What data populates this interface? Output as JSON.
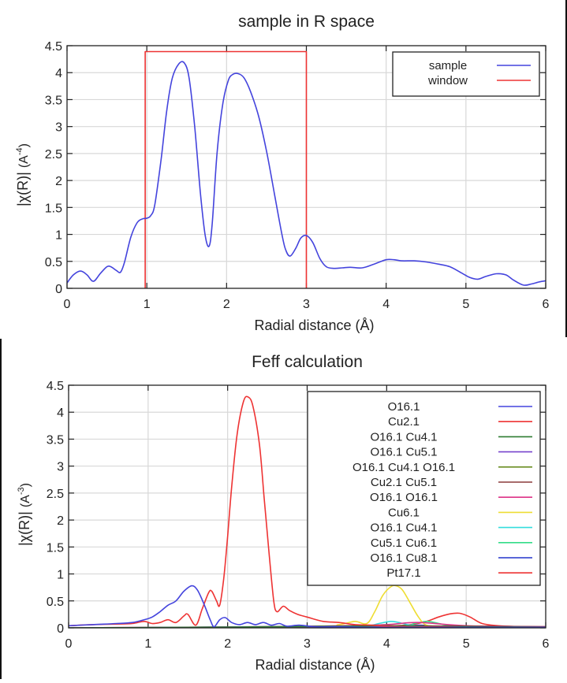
{
  "chart_data": [
    {
      "type": "line",
      "title": "sample in R space",
      "xlabel": "Radial distance    (Å)",
      "ylabel_main": "|χ(R)|",
      "ylabel_unit_base": "(A",
      "ylabel_unit_exp": "-4",
      "ylabel_unit_close": ")",
      "xlim": [
        0,
        6
      ],
      "ylim": [
        0,
        4.5
      ],
      "xticks": [
        "0",
        "1",
        "2",
        "3",
        "4",
        "5",
        "6"
      ],
      "yticks": [
        "0",
        "0.5",
        "1",
        "1.5",
        "2",
        "2.5",
        "3",
        "3.5",
        "4",
        "4.5"
      ],
      "grid": true,
      "legend_position": "top-right",
      "series": [
        {
          "name": "sample",
          "color": "#4444dd",
          "x": [
            0,
            0.08,
            0.17,
            0.25,
            0.33,
            0.42,
            0.5,
            0.55,
            0.62,
            0.67,
            0.72,
            0.8,
            0.88,
            0.95,
            1.0,
            1.05,
            1.1,
            1.18,
            1.25,
            1.32,
            1.4,
            1.47,
            1.53,
            1.6,
            1.67,
            1.73,
            1.78,
            1.82,
            1.88,
            1.95,
            2.02,
            2.08,
            2.15,
            2.22,
            2.3,
            2.4,
            2.5,
            2.6,
            2.7,
            2.75,
            2.8,
            2.87,
            2.93,
            3.0,
            3.08,
            3.17,
            3.25,
            3.35,
            3.45,
            3.55,
            3.7,
            3.85,
            4.0,
            4.1,
            4.2,
            4.35,
            4.5,
            4.65,
            4.8,
            4.95,
            5.05,
            5.15,
            5.25,
            5.38,
            5.5,
            5.6,
            5.72,
            5.82,
            5.92,
            6.0
          ],
          "y": [
            0.1,
            0.25,
            0.32,
            0.25,
            0.13,
            0.28,
            0.4,
            0.4,
            0.33,
            0.3,
            0.48,
            0.95,
            1.22,
            1.29,
            1.3,
            1.35,
            1.55,
            2.4,
            3.3,
            3.9,
            4.16,
            4.18,
            3.9,
            3.0,
            1.8,
            1.0,
            0.78,
            1.2,
            2.5,
            3.4,
            3.85,
            3.97,
            3.98,
            3.9,
            3.65,
            3.2,
            2.55,
            1.75,
            0.95,
            0.68,
            0.6,
            0.75,
            0.93,
            0.98,
            0.85,
            0.55,
            0.4,
            0.37,
            0.38,
            0.39,
            0.38,
            0.45,
            0.53,
            0.53,
            0.51,
            0.51,
            0.49,
            0.45,
            0.4,
            0.28,
            0.2,
            0.17,
            0.22,
            0.27,
            0.25,
            0.15,
            0.06,
            0.08,
            0.12,
            0.14
          ]
        },
        {
          "name": "window",
          "color": "#ee3333",
          "x": [
            0.98,
            0.98,
            1.0,
            2.98,
            3.0,
            3.0
          ],
          "y": [
            0,
            4.39,
            4.39,
            4.39,
            4.39,
            0
          ]
        }
      ]
    },
    {
      "type": "line",
      "title": "Feff calculation",
      "xlabel": "Radial distance    (Å)",
      "ylabel_main": "|χ(R)|",
      "ylabel_unit_base": "(A",
      "ylabel_unit_exp": "-3",
      "ylabel_unit_close": ")",
      "xlim": [
        0,
        6
      ],
      "ylim": [
        0,
        4.5
      ],
      "xticks": [
        "0",
        "1",
        "2",
        "3",
        "4",
        "5",
        "6"
      ],
      "yticks": [
        "0",
        "0.5",
        "1",
        "1.5",
        "2",
        "2.5",
        "3",
        "3.5",
        "4",
        "4.5"
      ],
      "grid": true,
      "legend_position": "top-right",
      "series": [
        {
          "name": "O16.1",
          "color": "#4444dd",
          "x": [
            0,
            0.3,
            0.6,
            0.8,
            0.95,
            1.05,
            1.15,
            1.25,
            1.35,
            1.45,
            1.55,
            1.62,
            1.7,
            1.78,
            1.83,
            1.9,
            1.97,
            2.05,
            2.15,
            2.25,
            2.35,
            2.45,
            2.55,
            2.65,
            2.75,
            2.9,
            3.1,
            3.4,
            3.8,
            4.5,
            5.5,
            6.0
          ],
          "y": [
            0.04,
            0.06,
            0.08,
            0.1,
            0.15,
            0.2,
            0.3,
            0.42,
            0.5,
            0.68,
            0.78,
            0.7,
            0.45,
            0.15,
            0.02,
            0.15,
            0.19,
            0.1,
            0.06,
            0.1,
            0.06,
            0.1,
            0.05,
            0.08,
            0.03,
            0.05,
            0.02,
            0.02,
            0.01,
            0.01,
            0.01,
            0.01
          ]
        },
        {
          "name": "Cu2.1",
          "color": "#ee3333",
          "x": [
            0,
            0.3,
            0.6,
            0.8,
            0.95,
            1.05,
            1.15,
            1.25,
            1.35,
            1.45,
            1.5,
            1.6,
            1.68,
            1.76,
            1.8,
            1.86,
            1.9,
            1.95,
            2.0,
            2.05,
            2.12,
            2.2,
            2.26,
            2.32,
            2.4,
            2.46,
            2.52,
            2.58,
            2.62,
            2.7,
            2.78,
            2.88,
            3.0,
            3.2,
            3.4,
            3.6,
            3.8,
            4.0,
            4.3,
            4.6,
            5.0,
            5.5,
            6.0
          ],
          "y": [
            0.04,
            0.06,
            0.07,
            0.08,
            0.12,
            0.08,
            0.1,
            0.15,
            0.1,
            0.22,
            0.25,
            0.05,
            0.35,
            0.65,
            0.68,
            0.5,
            0.42,
            0.9,
            1.7,
            2.6,
            3.6,
            4.2,
            4.28,
            4.1,
            3.4,
            2.4,
            1.4,
            0.5,
            0.3,
            0.4,
            0.32,
            0.25,
            0.2,
            0.12,
            0.1,
            0.06,
            0.05,
            0.03,
            0.02,
            0.02,
            0.01,
            0.01,
            0.01
          ]
        },
        {
          "name": "O16.1  Cu4.1",
          "color": "#2e7d32",
          "x": [
            0,
            1.5,
            2.5,
            3.5,
            4.0,
            4.5,
            5.0,
            6.0
          ],
          "y": [
            0.0,
            0.01,
            0.02,
            0.03,
            0.04,
            0.03,
            0.02,
            0.01
          ]
        },
        {
          "name": "O16.1  Cu5.1",
          "color": "#7744cc",
          "x": [
            0,
            1.5,
            2.5,
            3.5,
            4.2,
            5.0,
            6.0
          ],
          "y": [
            0.0,
            0.01,
            0.02,
            0.02,
            0.03,
            0.01,
            0.01
          ]
        },
        {
          "name": "O16.1  Cu4.1  O16.1",
          "color": "#6b8e23",
          "x": [
            0,
            2.0,
            3.0,
            4.0,
            5.0,
            6.0
          ],
          "y": [
            0.0,
            0.01,
            0.02,
            0.03,
            0.02,
            0.01
          ]
        },
        {
          "name": "Cu2.1  Cu5.1",
          "color": "#8b3a3a",
          "x": [
            0,
            2.0,
            3.0,
            4.0,
            5.0,
            6.0
          ],
          "y": [
            0.0,
            0.01,
            0.03,
            0.04,
            0.03,
            0.02
          ]
        },
        {
          "name": "O16.1     O16.1",
          "color": "#dd3388",
          "x": [
            0,
            2.5,
            3.5,
            4.0,
            4.4,
            5.0,
            6.0
          ],
          "y": [
            0.0,
            0.02,
            0.04,
            0.06,
            0.1,
            0.04,
            0.02
          ]
        },
        {
          "name": "Cu6.1",
          "color": "#eedd33",
          "x": [
            0,
            3.0,
            3.4,
            3.6,
            3.75,
            3.85,
            3.95,
            4.05,
            4.12,
            4.2,
            4.3,
            4.4,
            4.5,
            4.7,
            5.0,
            6.0
          ],
          "y": [
            0.0,
            0.02,
            0.06,
            0.12,
            0.08,
            0.3,
            0.6,
            0.76,
            0.78,
            0.7,
            0.45,
            0.2,
            0.05,
            0.03,
            0.02,
            0.01
          ]
        },
        {
          "name": "O16.1       Cu4.1",
          "color": "#33dddd",
          "x": [
            0,
            3.0,
            3.7,
            3.9,
            4.05,
            4.15,
            4.3,
            4.5,
            5.0,
            6.0
          ],
          "y": [
            0.0,
            0.01,
            0.03,
            0.08,
            0.12,
            0.1,
            0.05,
            0.03,
            0.01,
            0.0
          ]
        },
        {
          "name": "Cu5.1  Cu6.1",
          "color": "#33dd88",
          "x": [
            0,
            3.5,
            4.2,
            4.35,
            4.5,
            4.6,
            4.75,
            4.9,
            5.2,
            6.0
          ],
          "y": [
            0.0,
            0.01,
            0.03,
            0.08,
            0.12,
            0.1,
            0.05,
            0.02,
            0.01,
            0.0
          ]
        },
        {
          "name": "O16.1  Cu8.1",
          "color": "#2233cc",
          "x": [
            0,
            3.5,
            4.2,
            4.4,
            4.6,
            5.0,
            6.0
          ],
          "y": [
            0.0,
            0.01,
            0.03,
            0.05,
            0.03,
            0.01,
            0.0
          ]
        },
        {
          "name": "Pt17.1",
          "color": "#ee3333",
          "x": [
            0,
            3.5,
            4.0,
            4.3,
            4.5,
            4.65,
            4.8,
            4.92,
            5.05,
            5.2,
            5.4,
            5.7,
            6.0
          ],
          "y": [
            0.0,
            0.01,
            0.03,
            0.06,
            0.12,
            0.2,
            0.26,
            0.27,
            0.2,
            0.08,
            0.04,
            0.02,
            0.01
          ]
        }
      ]
    }
  ]
}
